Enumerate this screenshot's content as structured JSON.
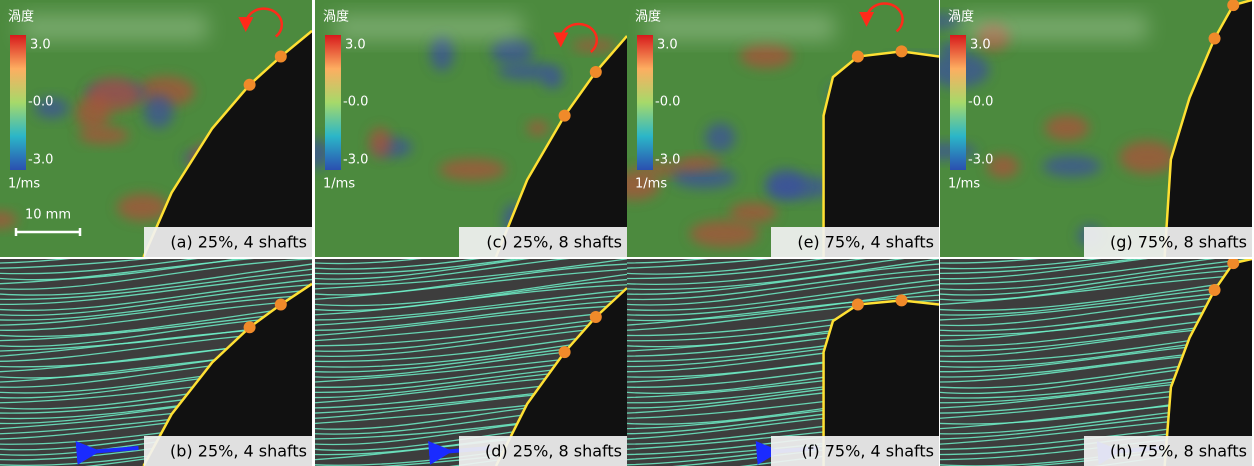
{
  "panels": [
    {
      "label": "(a) 25%, 4 shafts",
      "colorbar": {
        "title": "渦度",
        "max": "3.0",
        "mid": "-0.0",
        "min": "-3.0",
        "unit": "1/ms"
      },
      "scale_bar": "10 mm"
    },
    {
      "label": "(c) 25%, 8 shafts",
      "colorbar": {
        "title": "渦度",
        "max": "3.0",
        "mid": "-0.0",
        "min": "-3.0",
        "unit": "1/ms"
      }
    },
    {
      "label": "(e) 75%, 4 shafts",
      "colorbar": {
        "title": "渦度",
        "max": "3.0",
        "mid": "-0.0",
        "min": "-3.0",
        "unit": "1/ms"
      }
    },
    {
      "label": "(g) 75%, 8 shafts",
      "colorbar": {
        "title": "渦度",
        "max": "3.0",
        "mid": "-0.0",
        "min": "-3.0",
        "unit": "1/ms"
      }
    },
    {
      "label": "(b) 25%, 4 shafts"
    },
    {
      "label": "(d) 25%, 8 shafts"
    },
    {
      "label": "(f) 75%, 4 shafts"
    },
    {
      "label": "(h) 75%, 8 shafts"
    }
  ]
}
